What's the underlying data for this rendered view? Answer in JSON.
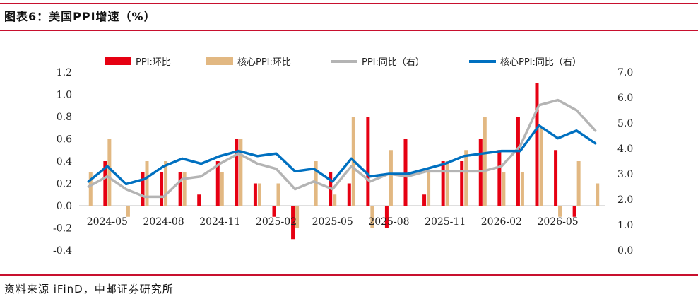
{
  "header": {
    "title": "图表6：美国PPI增速（%）"
  },
  "footer": {
    "source": "资料来源 iFinD，中邮证券研究所"
  },
  "chart_data": {
    "type": "bar+line",
    "title": "图表6：美国PPI增速（%）",
    "categories": [
      "2024-04",
      "2024-05",
      "2024-06",
      "2024-07",
      "2024-08",
      "2024-09",
      "2024-10",
      "2024-11",
      "2024-12",
      "2025-01",
      "2025-02",
      "2025-03",
      "2025-04",
      "2025-05",
      "2025-06",
      "2025-07",
      "2025-08",
      "2025-09",
      "2025-10",
      "2025-11",
      "2025-12",
      "2026-01",
      "2026-02",
      "2026-03",
      "2026-04",
      "2026-05",
      "2026-06",
      "2026-07"
    ],
    "x_tick_labels": [
      "2024-05",
      "2024-08",
      "2024-11",
      "2025-02",
      "2025-05",
      "2025-08",
      "2025-11",
      "2026-02",
      "2026-05"
    ],
    "x_tick_indices": [
      1,
      4,
      7,
      10,
      13,
      16,
      19,
      22,
      25
    ],
    "y_left": {
      "ticks": [
        "-0.4",
        "-0.2",
        "0.0",
        "0.2",
        "0.4",
        "0.6",
        "0.8",
        "1.0",
        "1.2"
      ],
      "ylim": [
        -0.4,
        1.2
      ]
    },
    "y_right": {
      "ticks": [
        "0.0",
        "1.0",
        "2.0",
        "3.0",
        "4.0",
        "5.0",
        "6.0",
        "7.0"
      ],
      "ylim": [
        0,
        7
      ]
    },
    "legend_position": "top",
    "series": [
      {
        "name": "PPI:环比",
        "kind": "bar",
        "axis": "left",
        "color": "#e60012",
        "values": [
          0.0,
          0.4,
          0.0,
          0.3,
          0.3,
          0.3,
          0.1,
          0.4,
          0.6,
          0.2,
          -0.1,
          -0.3,
          0.0,
          0.3,
          0.2,
          0.8,
          -0.2,
          0.6,
          0.1,
          0.4,
          0.4,
          0.6,
          0.5,
          0.8,
          1.1,
          0.5,
          -0.1,
          0.0
        ]
      },
      {
        "name": "核心PPI:环比",
        "kind": "bar",
        "axis": "left",
        "color": "#e2b882",
        "values": [
          0.3,
          0.6,
          -0.1,
          0.4,
          0.4,
          0.3,
          0.0,
          0.3,
          0.6,
          0.2,
          0.2,
          -0.2,
          0.4,
          0.1,
          0.8,
          -0.2,
          0.5,
          0.0,
          0.3,
          0.4,
          0.5,
          0.8,
          0.3,
          0.3,
          0.7,
          -0.1,
          0.4,
          0.2
        ]
      },
      {
        "name": "PPI:同比（右）",
        "kind": "line",
        "axis": "right",
        "color": "#b4b4b4",
        "values": [
          2.5,
          2.9,
          2.4,
          2.1,
          2.1,
          2.8,
          2.9,
          3.4,
          3.8,
          3.4,
          3.2,
          2.4,
          2.7,
          2.4,
          3.3,
          2.7,
          3.0,
          2.9,
          3.1,
          3.1,
          3.1,
          3.1,
          3.3,
          4.1,
          5.7,
          5.9,
          5.5,
          4.7
        ]
      },
      {
        "name": "核心PPI:同比（右）",
        "kind": "line",
        "axis": "right",
        "color": "#0070c0",
        "values": [
          2.7,
          3.3,
          2.6,
          2.8,
          3.3,
          3.6,
          3.4,
          3.7,
          3.9,
          3.7,
          3.8,
          3.1,
          3.2,
          2.7,
          3.6,
          2.9,
          3.0,
          3.0,
          3.2,
          3.4,
          3.7,
          3.8,
          3.9,
          3.9,
          4.9,
          4.4,
          4.7,
          4.2
        ]
      }
    ]
  }
}
